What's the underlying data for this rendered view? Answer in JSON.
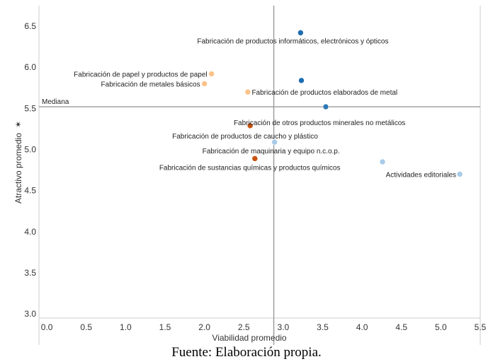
{
  "chart_data": {
    "type": "scatter",
    "xlabel": "Viabilidad promedio",
    "ylabel": "Atractivo promedio",
    "ylabel_marker": "✶",
    "xlim": [
      -0.1,
      5.5
    ],
    "ylim": [
      2.95,
      6.75
    ],
    "xticks": [
      "0.0",
      "0.5",
      "1.0",
      "1.5",
      "2.0",
      "2.5",
      "3.0",
      "3.5",
      "4.0",
      "4.5",
      "5.0",
      "5.5"
    ],
    "yticks": [
      "3.0",
      "3.5",
      "4.0",
      "4.5",
      "5.0",
      "5.5",
      "6.0",
      "6.5"
    ],
    "median_x": 2.88,
    "median_y": 5.52,
    "median_label": "Mediana",
    "grid": false,
    "points": [
      {
        "label": "Fabricación de productos informáticos, electrónicos y ópticos",
        "x": 3.22,
        "y": 6.42,
        "color": "#1f6eb0"
      },
      {
        "label": "Fabricación de papel y productos de papel",
        "x": 2.09,
        "y": 5.92,
        "color": "#fdc38a"
      },
      {
        "label": "Fabricación de metales básicos",
        "x": 2.0,
        "y": 5.8,
        "color": "#fdc38a"
      },
      {
        "label": "Fabricación de productos elaborados de metal",
        "x": 3.23,
        "y": 5.84,
        "color": "#1f6eb0"
      },
      {
        "label": "",
        "x": 2.55,
        "y": 5.7,
        "color": "#fdc38a"
      },
      {
        "label": "Fabricación de otros productos minerales no metálicos",
        "x": 3.54,
        "y": 5.52,
        "color": "#2e78b4"
      },
      {
        "label": "Fabricación de productos de caucho y plástico",
        "x": 2.58,
        "y": 5.29,
        "color": "#c7530f"
      },
      {
        "label": "Fabricación de maquinaria y equipo n.c.o.p.",
        "x": 2.89,
        "y": 5.09,
        "color": "#a9cbe8"
      },
      {
        "label": "Fabricación de sustancias químicas y productos químicos",
        "x": 2.64,
        "y": 4.89,
        "color": "#c7530f"
      },
      {
        "label": "",
        "x": 4.26,
        "y": 4.85,
        "color": "#a9cbe8"
      },
      {
        "label": "Actividades editoriales",
        "x": 5.24,
        "y": 4.7,
        "color": "#a9cbe8"
      }
    ]
  },
  "caption": "Fuente: Elaboración propia."
}
